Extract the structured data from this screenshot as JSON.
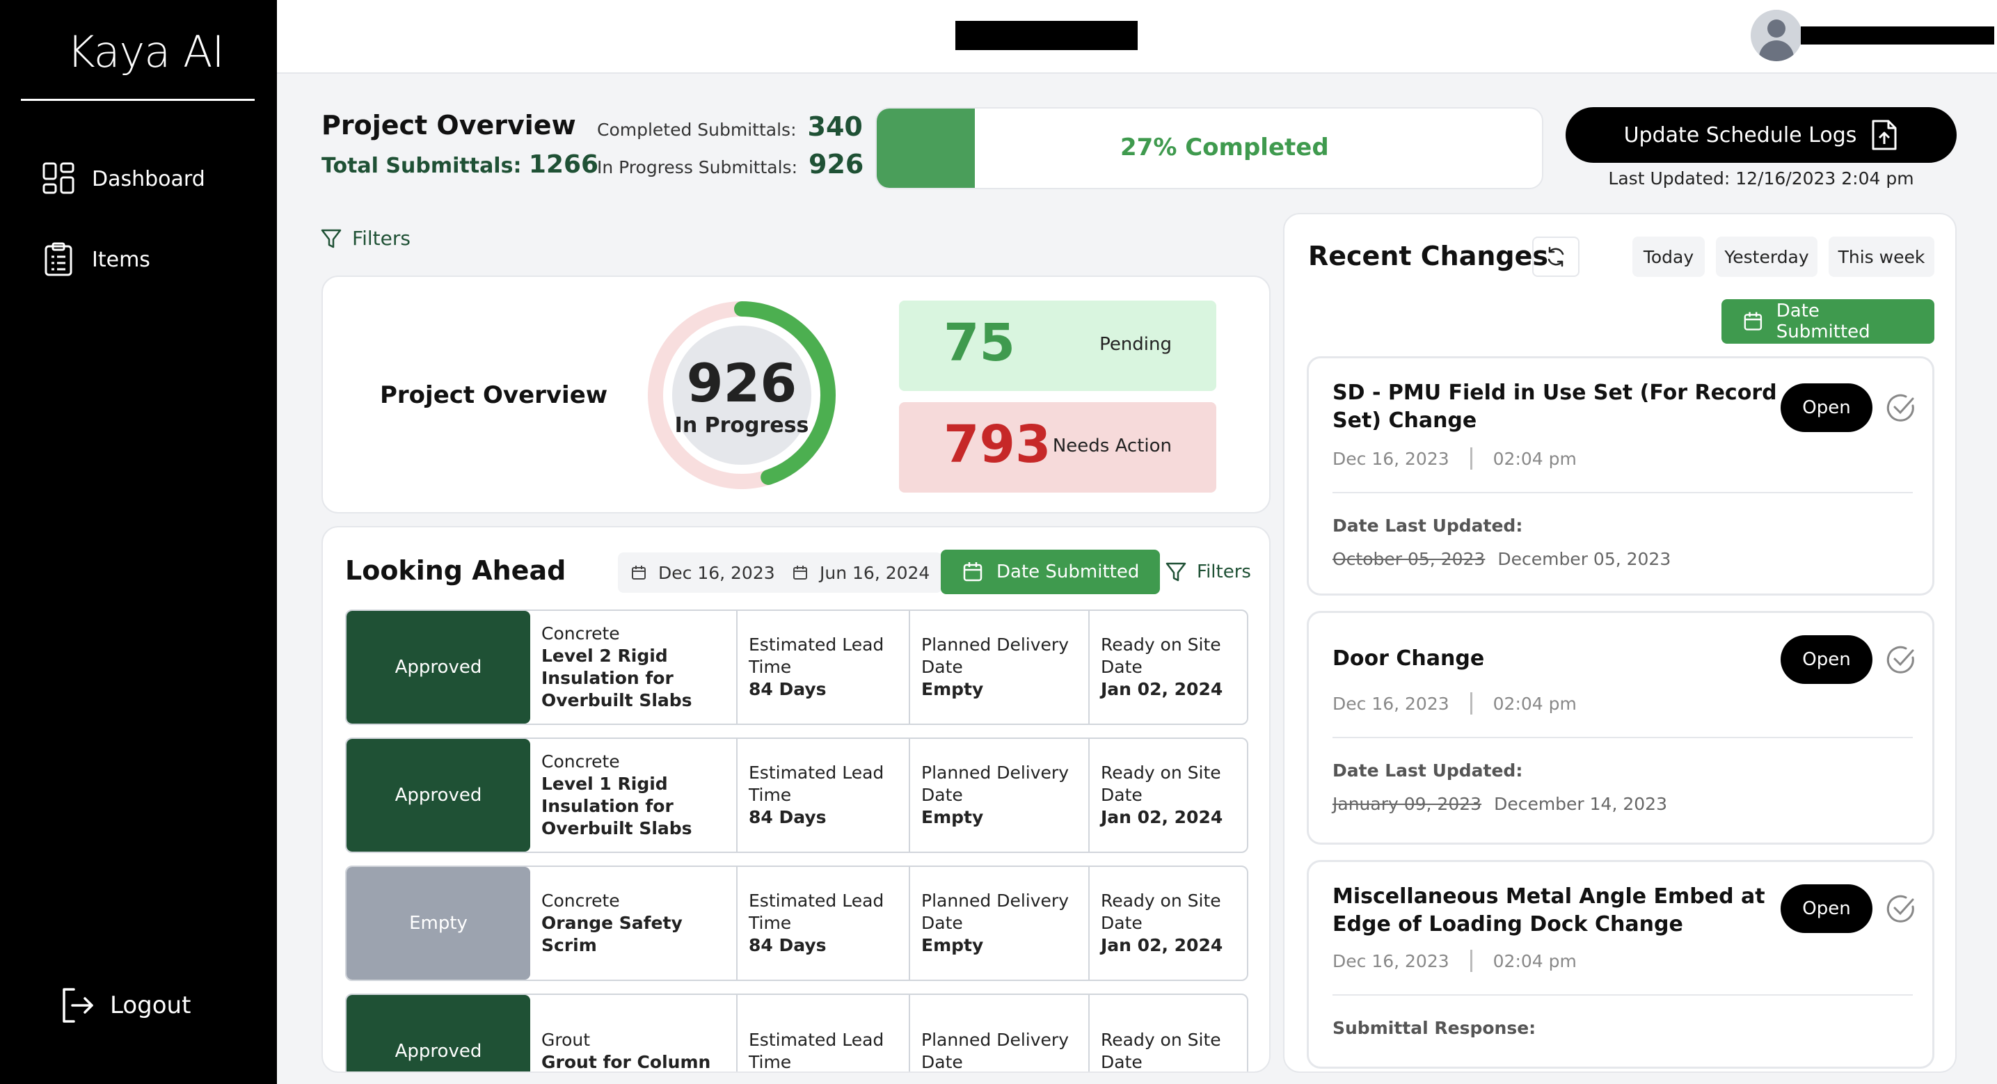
{
  "sidebar": {
    "logo": "Kaya AI",
    "items": [
      {
        "label": "Dashboard",
        "icon": "dashboard-icon"
      },
      {
        "label": "Items",
        "icon": "clipboard-icon"
      }
    ],
    "logout_label": "Logout"
  },
  "header": {
    "project_name": "",
    "user_email": ""
  },
  "overview": {
    "title": "Project Overview",
    "total_label": "Total Submittals:",
    "total_value": "1266",
    "completed_label": "Completed Submittals:",
    "completed_value": "340",
    "in_progress_label": "In Progress Submittals:",
    "in_progress_value": "926",
    "progress_percent": 27,
    "progress_label": "27% Completed",
    "update_button": "Update Schedule Logs",
    "last_updated": "Last Updated: 12/16/2023 2:04 pm",
    "filters_label": "Filters"
  },
  "overview_card": {
    "title": "Project Overview",
    "donut_value": "926",
    "donut_label": "In Progress",
    "donut_fraction": 0.45,
    "pending_value": "75",
    "pending_label": "Pending",
    "action_value": "793",
    "action_label": "Needs Action",
    "colors": {
      "green": "#4caf50",
      "red_light": "#f8dede",
      "grey_center": "#e5e7eb"
    }
  },
  "looking_ahead": {
    "title": "Looking Ahead",
    "date_from": "Dec 16, 2023",
    "date_to": "Jun 16, 2024",
    "date_button": "Date Submitted",
    "filters_label": "Filters",
    "rows": [
      {
        "status": "Approved",
        "status_type": "approved",
        "category": "Concrete",
        "name": "Level 2 Rigid Insulation for Overbuilt Slabs",
        "lead_label": "Estimated Lead Time",
        "lead_value": "84 Days",
        "delivery_label": "Planned Delivery Date",
        "delivery_value": "Empty",
        "site_label": "Ready on Site Date",
        "site_value": "Jan 02, 2024"
      },
      {
        "status": "Approved",
        "status_type": "approved",
        "category": "Concrete",
        "name": "Level 1 Rigid Insulation for Overbuilt Slabs",
        "lead_label": "Estimated Lead Time",
        "lead_value": "84 Days",
        "delivery_label": "Planned Delivery Date",
        "delivery_value": "Empty",
        "site_label": "Ready on Site Date",
        "site_value": "Jan 02, 2024"
      },
      {
        "status": "Empty",
        "status_type": "empty",
        "category": "Concrete",
        "name": "Orange Safety Scrim",
        "lead_label": "Estimated Lead Time",
        "lead_value": "84 Days",
        "delivery_label": "Planned Delivery Date",
        "delivery_value": "Empty",
        "site_label": "Ready on Site Date",
        "site_value": "Jan 02, 2024"
      },
      {
        "status": "Approved",
        "status_type": "approved",
        "category": "Grout",
        "name": "Grout for Column",
        "lead_label": "Estimated Lead Time",
        "lead_value": "",
        "delivery_label": "Planned Delivery Date",
        "delivery_value": "",
        "site_label": "Ready on Site Date",
        "site_value": ""
      }
    ]
  },
  "recent_changes": {
    "title": "Recent Changes",
    "filters": [
      "Today",
      "Yesterday",
      "This week"
    ],
    "date_button": "Date Submitted",
    "open_label": "Open",
    "cards": [
      {
        "title": "SD - PMU Field in Use Set (For Record Set) Change",
        "date": "Dec 16, 2023",
        "time": "02:04 pm",
        "section_label": "Date Last Updated:",
        "old_date": "October 05, 2023",
        "new_date": "December 05, 2023"
      },
      {
        "title": "Door Change",
        "date": "Dec 16, 2023",
        "time": "02:04 pm",
        "section_label": "Date Last Updated:",
        "old_date": "January 09, 2023",
        "new_date": "December 14, 2023"
      },
      {
        "title": "Miscellaneous Metal Angle Embed at Edge of Loading Dock Change",
        "date": "Dec 16, 2023",
        "time": "02:04 pm",
        "section_label": "Submittal Response:",
        "old_date": "",
        "new_date": ""
      }
    ]
  }
}
